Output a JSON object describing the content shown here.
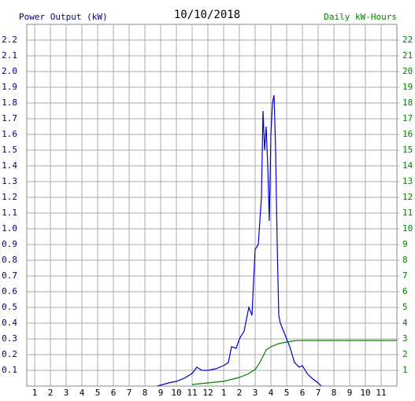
{
  "chart_data": {
    "type": "line",
    "title": "10/10/2018",
    "y_label": "Power Output (kW)",
    "y2_label": "Daily kW-Hours",
    "grid": true,
    "xlim": [
      0.5,
      24
    ],
    "xticks": [
      1,
      2,
      3,
      4,
      5,
      6,
      7,
      8,
      9,
      10,
      11,
      12,
      {
        "value": 13,
        "label": "1"
      },
      {
        "value": 14,
        "label": "2"
      },
      {
        "value": 15,
        "label": "3"
      },
      {
        "value": 16,
        "label": "4"
      },
      {
        "value": 17,
        "label": "5"
      },
      {
        "value": 18,
        "label": "6"
      },
      {
        "value": 19,
        "label": "7"
      },
      {
        "value": 20,
        "label": "8"
      },
      {
        "value": 21,
        "label": "9"
      },
      {
        "value": 22,
        "label": "10"
      },
      {
        "value": 23,
        "label": "11"
      }
    ],
    "ylim": [
      0,
      2.3
    ],
    "yticks": [
      0.1,
      0.2,
      0.3,
      0.4,
      0.5,
      0.6,
      0.7,
      0.8,
      0.9,
      {
        "value": 1.0,
        "label": "1.0"
      },
      1.1,
      1.2,
      1.3,
      1.4,
      1.5,
      1.6,
      1.7,
      1.8,
      1.9,
      {
        "value": 2.0,
        "label": "2.0"
      },
      2.1,
      2.2
    ],
    "y2lim": [
      0,
      23
    ],
    "y2ticks": [
      1,
      2,
      3,
      4,
      5,
      6,
      7,
      8,
      9,
      10,
      11,
      12,
      13,
      14,
      15,
      16,
      17,
      18,
      19,
      20,
      21,
      22
    ],
    "series": [
      {
        "name": "Power Output",
        "color": "#0000cc",
        "x": [
          8.8,
          9.5,
          10,
          10.5,
          11,
          11.3,
          11.6,
          12,
          12.5,
          13,
          13.3,
          13.5,
          13.8,
          14,
          14.3,
          14.6,
          14.8,
          15,
          15.2,
          15.4,
          15.5,
          15.6,
          15.7,
          15.8,
          15.9,
          16.0,
          16.1,
          16.2,
          16.3,
          16.4,
          16.5,
          16.6,
          16.8,
          17.0,
          17.2,
          17.5,
          17.8,
          18,
          18.3,
          18.6,
          19,
          19.2
        ],
        "values": [
          0,
          0.02,
          0.03,
          0.05,
          0.08,
          0.12,
          0.1,
          0.1,
          0.11,
          0.13,
          0.15,
          0.25,
          0.24,
          0.3,
          0.35,
          0.5,
          0.45,
          0.87,
          0.9,
          1.2,
          1.75,
          1.5,
          1.65,
          1.4,
          1.05,
          1.6,
          1.8,
          1.85,
          1.5,
          0.9,
          0.45,
          0.4,
          0.35,
          0.3,
          0.25,
          0.15,
          0.12,
          0.13,
          0.08,
          0.05,
          0.02,
          0
        ]
      },
      {
        "name": "Daily kW-Hours",
        "color": "#008000",
        "axis": "y2",
        "x": [
          11,
          12,
          13,
          14,
          14.5,
          15,
          15.3,
          15.7,
          16,
          16.5,
          17,
          17.5,
          18,
          24
        ],
        "values": [
          0.1,
          0.2,
          0.3,
          0.55,
          0.75,
          1.05,
          1.5,
          2.3,
          2.5,
          2.7,
          2.8,
          2.88,
          2.9,
          2.9
        ]
      }
    ]
  }
}
